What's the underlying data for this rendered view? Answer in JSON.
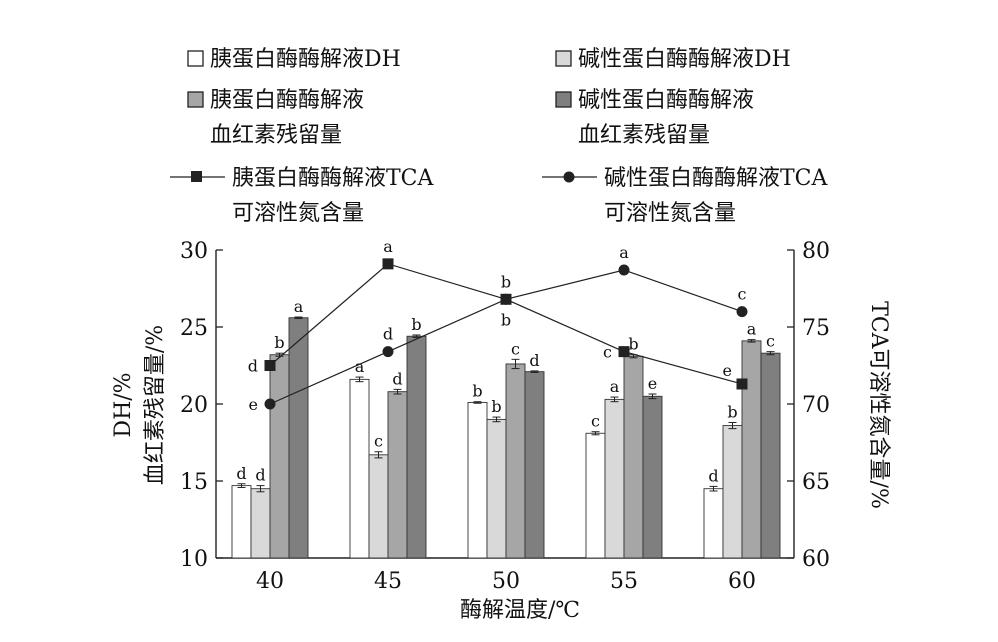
{
  "chart_data": {
    "type": "bar",
    "categories": [
      "40",
      "45",
      "50",
      "55",
      "60"
    ],
    "xlabel": "酶解温度/℃",
    "ylabel_left": [
      "DH/%",
      "血红素残留量/%"
    ],
    "ylabel_right": "TCA可溶性氮含量/%",
    "ylim_left": [
      10,
      30
    ],
    "ylim_right": [
      60,
      80
    ],
    "yticks_left": [
      "10",
      "15",
      "20",
      "25",
      "30"
    ],
    "yticks_right": [
      "60",
      "65",
      "70",
      "75",
      "80"
    ],
    "grid": false,
    "legend_position": "top",
    "series": [
      {
        "name": "胰蛋白酶酶解液DH",
        "kind": "bar",
        "axis": "left",
        "color": "#ffffff",
        "values": [
          14.7,
          21.6,
          20.1,
          18.1,
          14.5
        ],
        "errors": [
          0.12,
          0.15,
          0.05,
          0.1,
          0.15
        ],
        "labels": [
          "d",
          "a",
          "b",
          "c",
          "d"
        ]
      },
      {
        "name": "碱性蛋白酶酶解液DH",
        "kind": "bar",
        "axis": "left",
        "color": "#d9d9d9",
        "values": [
          14.5,
          16.7,
          19.0,
          20.3,
          18.6
        ],
        "errors": [
          0.2,
          0.2,
          0.15,
          0.15,
          0.2
        ],
        "labels": [
          "d",
          "c",
          "b",
          "a",
          "b"
        ]
      },
      {
        "name": "胰蛋白酶酶解液血红素残留量",
        "kind": "bar",
        "axis": "left",
        "color": "#a6a6a6",
        "values": [
          23.2,
          20.8,
          22.6,
          23.1,
          24.1
        ],
        "errors": [
          0.1,
          0.15,
          0.3,
          0.1,
          0.08
        ],
        "labels": [
          "b",
          "d",
          "c",
          "b",
          "a"
        ]
      },
      {
        "name": "碱性蛋白酶酶解液血红素残留量",
        "kind": "bar",
        "axis": "left",
        "color": "#7f7f7f",
        "values": [
          25.6,
          24.4,
          22.1,
          20.5,
          23.3
        ],
        "errors": [
          0.05,
          0.08,
          0.05,
          0.15,
          0.1
        ],
        "labels": [
          "a",
          "b",
          "d",
          "e",
          "c"
        ]
      },
      {
        "name": "胰蛋白酶酶解液TCA可溶性氮含量",
        "kind": "line",
        "axis": "right",
        "marker": "square",
        "values": [
          72.5,
          79.1,
          76.8,
          73.4,
          71.3
        ],
        "labels": [
          "d",
          "a",
          "b",
          "c",
          "e"
        ]
      },
      {
        "name": "碱性蛋白酶酶解液TCA可溶性氮含量",
        "kind": "line",
        "axis": "right",
        "marker": "circle",
        "values": [
          70.0,
          73.4,
          76.8,
          78.7,
          76.0
        ],
        "labels": [
          "e",
          "d",
          "b",
          "a",
          "c"
        ]
      }
    ]
  },
  "legend": {
    "items": [
      {
        "lines": [
          "胰蛋白酶酶解液DH"
        ]
      },
      {
        "lines": [
          "碱性蛋白酶酶解液DH"
        ]
      },
      {
        "lines": [
          "胰蛋白酶酶解液",
          "血红素残留量"
        ]
      },
      {
        "lines": [
          "碱性蛋白酶酶解液",
          "血红素残留量"
        ]
      },
      {
        "lines": [
          "胰蛋白酶酶解液TCA",
          "可溶性氮含量"
        ]
      },
      {
        "lines": [
          "碱性蛋白酶酶解液TCA",
          "可溶性氮含量"
        ]
      }
    ]
  }
}
